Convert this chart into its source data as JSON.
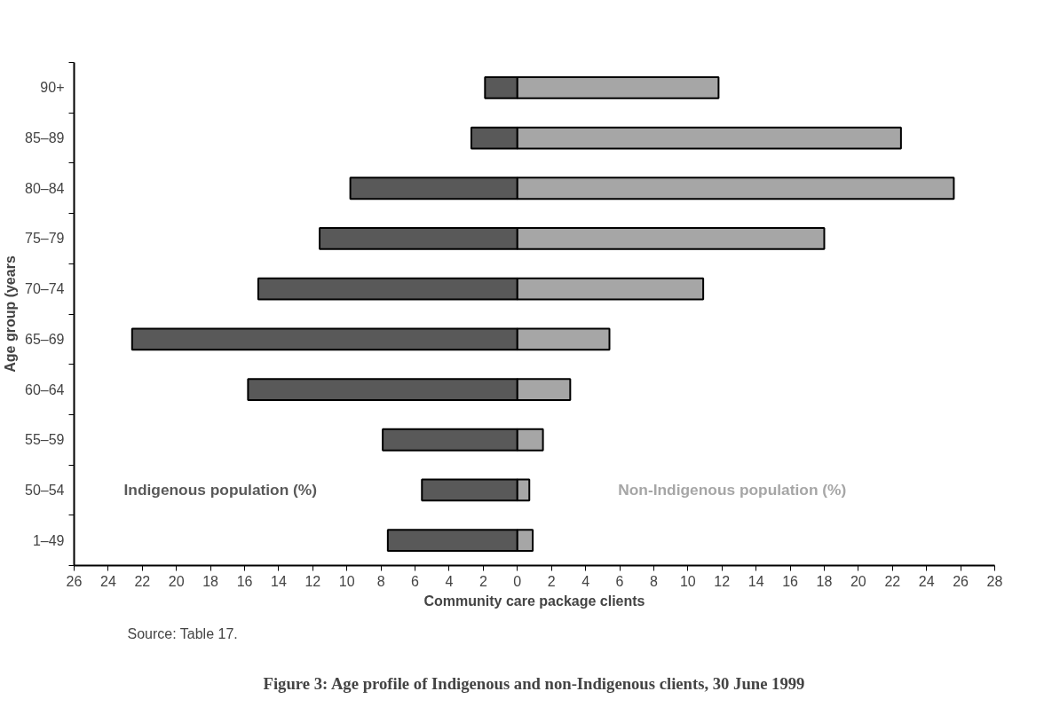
{
  "chart_data": {
    "type": "bar",
    "orientation": "horizontal",
    "stacked": true,
    "title": "Figure 3: Age profile of Indigenous and non-Indigenous clients, 30 June 1999",
    "xlabel": "Community care package clients",
    "ylabel": "Age group (years",
    "annotations": [
      "Source: Table 17."
    ],
    "categories": [
      "90+",
      "85–89",
      "80–84",
      "75–79",
      "70–74",
      "65–69",
      "60–64",
      "55–59",
      "50–54",
      "1–49"
    ],
    "series": [
      {
        "name": "Indigenous population (%)",
        "color": "#595959",
        "values": [
          -1.9,
          -2.7,
          -9.8,
          -11.6,
          -15.2,
          -22.6,
          -15.8,
          -7.9,
          -5.6,
          -7.6
        ]
      },
      {
        "name": "Non-Indigenous population (%)",
        "color": "#a6a6a6",
        "values": [
          11.8,
          22.5,
          25.6,
          18.0,
          10.9,
          5.4,
          3.1,
          1.5,
          0.7,
          0.9
        ]
      }
    ],
    "xlim": [
      -26,
      28
    ],
    "xticks": [
      {
        "value": -26,
        "label": "26"
      },
      {
        "value": -24,
        "label": "24"
      },
      {
        "value": -22,
        "label": "22"
      },
      {
        "value": -20,
        "label": "20"
      },
      {
        "value": -18,
        "label": "18"
      },
      {
        "value": -16,
        "label": "16"
      },
      {
        "value": -14,
        "label": "14"
      },
      {
        "value": -12,
        "label": "12"
      },
      {
        "value": -10,
        "label": "10"
      },
      {
        "value": -8,
        "label": "8"
      },
      {
        "value": -6,
        "label": "6"
      },
      {
        "value": -4,
        "label": "4"
      },
      {
        "value": -2,
        "label": "2"
      },
      0,
      2,
      4,
      6,
      8,
      10,
      12,
      14,
      16,
      18,
      20,
      22,
      24,
      26,
      28
    ],
    "grid": false,
    "legend": false
  }
}
